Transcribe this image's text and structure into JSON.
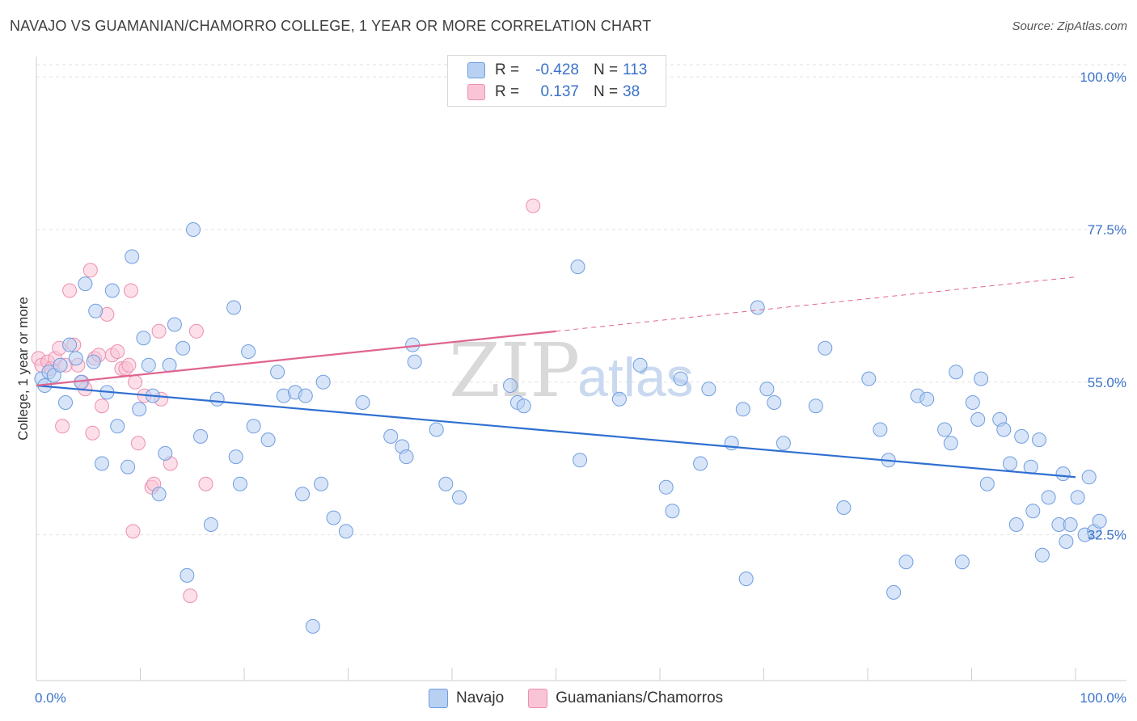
{
  "title": "NAVAJO VS GUAMANIAN/CHAMORRO COLLEGE, 1 YEAR OR MORE CORRELATION CHART",
  "source": "Source: ZipAtlas.com",
  "watermark": {
    "zip": "ZIP",
    "atlas": "atlas"
  },
  "legend": {
    "rows": [
      {
        "r_label": "R =",
        "r_value": "-0.428",
        "n_label": "N =",
        "n_value": "113",
        "color": "#b8d0f2",
        "border": "#6f9ee0"
      },
      {
        "r_label": "R =",
        "r_value": "0.137",
        "n_label": "N =",
        "n_value": "38",
        "color": "#f9c5d6",
        "border": "#ec8fb0"
      }
    ]
  },
  "bottom_legend": [
    {
      "label": "Navajo",
      "color": "#b8d0f2",
      "border": "#6f9ee0"
    },
    {
      "label": "Guamanians/Chamorros",
      "color": "#f9c5d6",
      "border": "#ec8fb0"
    }
  ],
  "axis": {
    "ylabel": "College, 1 year or more",
    "x_min_label": "0.0%",
    "x_max_label": "100.0%",
    "y_tick_labels": [
      "100.0%",
      "77.5%",
      "55.0%",
      "32.5%"
    ]
  },
  "chart_data": {
    "type": "scatter",
    "xlim": [
      0,
      100
    ],
    "ylim": [
      11,
      103
    ],
    "y_ticks": [
      100,
      77.5,
      55,
      32.5
    ],
    "grid": true,
    "series": [
      {
        "name": "Navajo",
        "color": "#6f9ee0",
        "fill": "#b8d0f2",
        "trend": {
          "x0": 0,
          "y0": 54.5,
          "x1": 100,
          "y1": 41.0,
          "solid_to": 100
        },
        "points": [
          [
            0.5,
            55.5
          ],
          [
            0.8,
            54.5
          ],
          [
            1.2,
            56.5
          ],
          [
            1.7,
            56.0
          ],
          [
            2.3,
            57.5
          ],
          [
            2.8,
            52.0
          ],
          [
            3.2,
            60.5
          ],
          [
            3.8,
            58.5
          ],
          [
            4.3,
            55.0
          ],
          [
            4.7,
            69.5
          ],
          [
            5.5,
            58.0
          ],
          [
            5.7,
            65.5
          ],
          [
            6.3,
            43.0
          ],
          [
            6.8,
            53.5
          ],
          [
            7.3,
            68.5
          ],
          [
            7.8,
            48.5
          ],
          [
            8.8,
            42.5
          ],
          [
            9.2,
            73.5
          ],
          [
            9.9,
            51.0
          ],
          [
            10.3,
            61.5
          ],
          [
            10.8,
            57.5
          ],
          [
            11.2,
            53.0
          ],
          [
            11.8,
            38.5
          ],
          [
            12.4,
            44.5
          ],
          [
            12.8,
            57.5
          ],
          [
            13.3,
            63.5
          ],
          [
            14.1,
            60.0
          ],
          [
            14.5,
            26.5
          ],
          [
            15.1,
            77.5
          ],
          [
            15.8,
            47.0
          ],
          [
            16.8,
            34.0
          ],
          [
            17.4,
            52.5
          ],
          [
            19.0,
            66.0
          ],
          [
            19.2,
            44.0
          ],
          [
            19.6,
            40.0
          ],
          [
            20.4,
            59.5
          ],
          [
            20.9,
            48.5
          ],
          [
            22.3,
            46.5
          ],
          [
            23.2,
            56.5
          ],
          [
            23.8,
            53.0
          ],
          [
            24.9,
            53.5
          ],
          [
            25.6,
            38.5
          ],
          [
            25.9,
            53.0
          ],
          [
            26.6,
            19.0
          ],
          [
            27.4,
            40.0
          ],
          [
            27.6,
            55.0
          ],
          [
            28.6,
            35.0
          ],
          [
            29.8,
            33.0
          ],
          [
            31.4,
            52.0
          ],
          [
            34.1,
            47.0
          ],
          [
            35.2,
            45.5
          ],
          [
            35.6,
            44.0
          ],
          [
            36.2,
            60.5
          ],
          [
            36.4,
            58.0
          ],
          [
            38.5,
            48.0
          ],
          [
            39.4,
            40.0
          ],
          [
            40.7,
            38.0
          ],
          [
            45.6,
            54.5
          ],
          [
            46.3,
            52.0
          ],
          [
            46.9,
            51.5
          ],
          [
            52.1,
            72.0
          ],
          [
            52.3,
            43.5
          ],
          [
            56.1,
            52.5
          ],
          [
            58.1,
            57.5
          ],
          [
            60.6,
            39.5
          ],
          [
            61.2,
            36.0
          ],
          [
            62.0,
            55.5
          ],
          [
            63.9,
            43.0
          ],
          [
            64.7,
            54.0
          ],
          [
            66.9,
            46.0
          ],
          [
            68.0,
            51.0
          ],
          [
            68.3,
            26.0
          ],
          [
            69.4,
            66.0
          ],
          [
            70.3,
            54.0
          ],
          [
            71.0,
            52.0
          ],
          [
            71.9,
            46.0
          ],
          [
            75.0,
            51.5
          ],
          [
            75.9,
            60.0
          ],
          [
            77.7,
            36.5
          ],
          [
            80.1,
            55.5
          ],
          [
            81.2,
            48.0
          ],
          [
            82.0,
            43.5
          ],
          [
            82.5,
            24.0
          ],
          [
            83.7,
            28.5
          ],
          [
            84.8,
            53.0
          ],
          [
            85.7,
            52.5
          ],
          [
            87.4,
            48.0
          ],
          [
            88.0,
            46.0
          ],
          [
            88.5,
            56.5
          ],
          [
            89.1,
            28.5
          ],
          [
            90.1,
            52.0
          ],
          [
            90.6,
            49.5
          ],
          [
            90.9,
            55.5
          ],
          [
            91.5,
            40.0
          ],
          [
            92.7,
            49.5
          ],
          [
            93.1,
            48.0
          ],
          [
            93.7,
            43.0
          ],
          [
            94.3,
            34.0
          ],
          [
            94.8,
            47.0
          ],
          [
            95.7,
            42.5
          ],
          [
            95.9,
            36.0
          ],
          [
            96.5,
            46.5
          ],
          [
            96.8,
            29.5
          ],
          [
            97.4,
            38.0
          ],
          [
            98.4,
            34.0
          ],
          [
            98.8,
            41.5
          ],
          [
            99.1,
            31.5
          ],
          [
            99.5,
            34.0
          ],
          [
            100.2,
            38.0
          ],
          [
            100.9,
            32.5
          ],
          [
            101.3,
            41.0
          ],
          [
            101.8,
            33.0
          ],
          [
            102.3,
            34.5
          ]
        ]
      },
      {
        "name": "Guamanians/Chamorros",
        "color": "#ec8fb0",
        "fill": "#f9c5d6",
        "trend": {
          "x0": 0,
          "y0": 54.5,
          "x1": 100,
          "y1": 70.5,
          "solid_to": 50
        },
        "points": [
          [
            0.2,
            58.5
          ],
          [
            0.5,
            57.5
          ],
          [
            1.1,
            58.0
          ],
          [
            1.4,
            57.0
          ],
          [
            1.8,
            58.5
          ],
          [
            2.2,
            60.0
          ],
          [
            2.5,
            48.5
          ],
          [
            2.8,
            57.5
          ],
          [
            3.2,
            68.5
          ],
          [
            3.6,
            60.5
          ],
          [
            4.0,
            57.5
          ],
          [
            4.4,
            55.0
          ],
          [
            4.7,
            54.0
          ],
          [
            5.2,
            71.5
          ],
          [
            5.4,
            47.5
          ],
          [
            5.6,
            58.5
          ],
          [
            6.0,
            59.0
          ],
          [
            6.3,
            51.5
          ],
          [
            6.8,
            65.0
          ],
          [
            7.3,
            59.0
          ],
          [
            7.8,
            59.5
          ],
          [
            8.2,
            57.0
          ],
          [
            8.6,
            57.0
          ],
          [
            8.9,
            57.5
          ],
          [
            9.1,
            68.5
          ],
          [
            9.3,
            33.0
          ],
          [
            9.8,
            46.0
          ],
          [
            10.4,
            53.0
          ],
          [
            11.1,
            39.5
          ],
          [
            11.3,
            40.0
          ],
          [
            11.8,
            62.5
          ],
          [
            12.0,
            52.5
          ],
          [
            12.9,
            43.0
          ],
          [
            14.8,
            23.5
          ],
          [
            15.4,
            62.5
          ],
          [
            16.3,
            40.0
          ],
          [
            47.8,
            81.0
          ],
          [
            9.5,
            55.0
          ]
        ]
      }
    ]
  }
}
